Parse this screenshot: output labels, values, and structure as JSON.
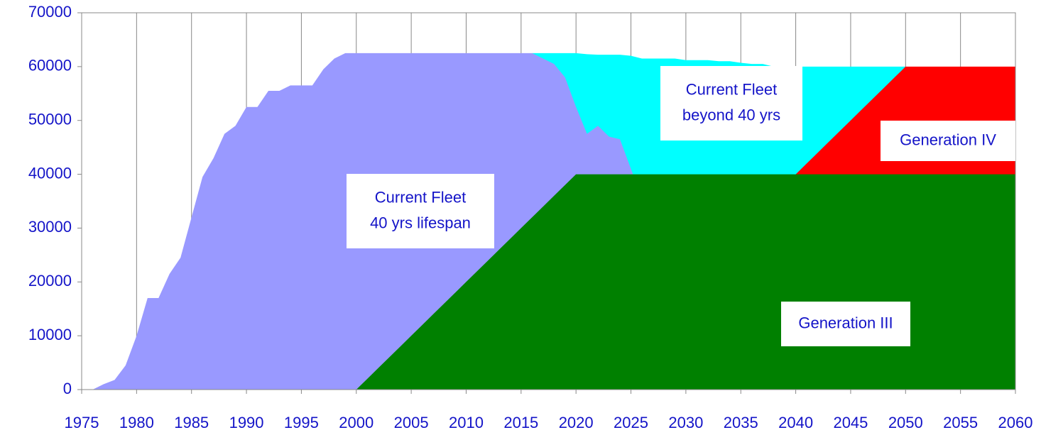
{
  "chart_data": {
    "type": "area",
    "x": [
      1975,
      1976,
      1977,
      1978,
      1979,
      1980,
      1981,
      1982,
      1983,
      1984,
      1985,
      1986,
      1987,
      1988,
      1989,
      1990,
      1991,
      1992,
      1993,
      1994,
      1995,
      1996,
      1997,
      1998,
      1999,
      2000,
      2001,
      2002,
      2003,
      2004,
      2005,
      2006,
      2007,
      2008,
      2009,
      2010,
      2011,
      2012,
      2013,
      2014,
      2015,
      2016,
      2017,
      2018,
      2019,
      2020,
      2021,
      2022,
      2023,
      2024,
      2025,
      2026,
      2027,
      2028,
      2029,
      2030,
      2031,
      2032,
      2033,
      2034,
      2035,
      2036,
      2037,
      2038,
      2039,
      2040,
      2041,
      2042,
      2043,
      2044,
      2045,
      2046,
      2047,
      2048,
      2049,
      2050,
      2051,
      2052,
      2053,
      2054,
      2055,
      2056,
      2057,
      2058,
      2059,
      2060
    ],
    "series": [
      {
        "color": "#00ffff",
        "values": [
          null,
          null,
          null,
          null,
          null,
          null,
          null,
          null,
          null,
          null,
          null,
          null,
          null,
          null,
          null,
          null,
          null,
          null,
          null,
          null,
          null,
          null,
          null,
          null,
          null,
          null,
          null,
          null,
          null,
          null,
          null,
          null,
          null,
          null,
          null,
          null,
          null,
          null,
          null,
          null,
          null,
          62500,
          62500,
          62500,
          62500,
          62500,
          62300,
          62200,
          62200,
          62200,
          62000,
          61500,
          61500,
          61500,
          61500,
          61200,
          61200,
          61200,
          61000,
          61000,
          60700,
          60500,
          60500,
          60000,
          60000,
          60000,
          60000,
          60000,
          60000,
          60000,
          60000,
          60000,
          60000,
          60000,
          60000,
          60000,
          null,
          null,
          null,
          null,
          null,
          null,
          null,
          null,
          null,
          null
        ]
      },
      {
        "color": "#9999ff",
        "values": [
          null,
          0,
          1000,
          1800,
          4500,
          10000,
          17000,
          17000,
          21500,
          24500,
          32000,
          39500,
          43000,
          47500,
          49000,
          52500,
          52500,
          55500,
          55500,
          56500,
          56500,
          56500,
          59500,
          61500,
          62500,
          62500,
          62500,
          62500,
          62500,
          62500,
          62500,
          62500,
          62500,
          62500,
          62500,
          62500,
          62500,
          62500,
          62500,
          62500,
          62500,
          62500,
          61500,
          60500,
          58000,
          52500,
          47500,
          49000,
          47000,
          46500,
          41000,
          35500,
          34000,
          31000,
          31500,
          30000,
          32000,
          31500,
          33500,
          34000,
          36000,
          38000,
          37000,
          37500,
          38500,
          null,
          null,
          null,
          null,
          null,
          null,
          null,
          null,
          null,
          null,
          null,
          null,
          null,
          null,
          null,
          null,
          null,
          null,
          null,
          null,
          null
        ]
      },
      {
        "color": "#ff0000",
        "values": [
          null,
          null,
          null,
          null,
          null,
          null,
          null,
          null,
          null,
          null,
          null,
          null,
          null,
          null,
          null,
          null,
          null,
          null,
          null,
          null,
          null,
          null,
          null,
          null,
          null,
          null,
          null,
          null,
          null,
          null,
          null,
          null,
          null,
          null,
          null,
          null,
          null,
          null,
          null,
          null,
          null,
          null,
          null,
          null,
          null,
          null,
          null,
          null,
          null,
          null,
          null,
          null,
          null,
          null,
          null,
          null,
          null,
          null,
          null,
          null,
          null,
          null,
          null,
          null,
          null,
          40000,
          42000,
          44000,
          46000,
          48000,
          50000,
          52000,
          54000,
          56000,
          58000,
          60000,
          60000,
          60000,
          60000,
          60000,
          60000,
          60000,
          60000,
          60000,
          60000,
          60000
        ]
      },
      {
        "color": "#008000",
        "values": [
          null,
          null,
          null,
          null,
          null,
          null,
          null,
          null,
          null,
          null,
          null,
          null,
          null,
          null,
          null,
          null,
          null,
          null,
          null,
          null,
          null,
          null,
          null,
          null,
          null,
          0,
          2000,
          4000,
          6000,
          8000,
          10000,
          12000,
          14000,
          16000,
          18000,
          20000,
          22000,
          24000,
          26000,
          28000,
          30000,
          32000,
          34000,
          36000,
          38000,
          40000,
          40000,
          40000,
          40000,
          40000,
          40000,
          40000,
          40000,
          40000,
          40000,
          40000,
          40000,
          40000,
          40000,
          40000,
          40000,
          40000,
          40000,
          40000,
          40000,
          40000,
          40000,
          40000,
          40000,
          40000,
          40000,
          40000,
          40000,
          40000,
          40000,
          40000,
          40000,
          40000,
          40000,
          40000,
          40000,
          40000,
          40000,
          40000,
          40000,
          40000
        ]
      }
    ],
    "xlim": [
      1975,
      2060
    ],
    "ylim": [
      0,
      70000
    ],
    "xticks": [
      1975,
      1980,
      1985,
      1990,
      1995,
      2000,
      2005,
      2010,
      2015,
      2020,
      2025,
      2030,
      2035,
      2040,
      2045,
      2050,
      2055,
      2060
    ],
    "yticks": [
      0,
      10000,
      20000,
      30000,
      40000,
      50000,
      60000,
      70000
    ],
    "grid": true,
    "annotations": [
      {
        "lines": [
          "Current Fleet",
          "40 yrs lifespan"
        ]
      },
      {
        "lines": [
          "Current Fleet",
          "beyond 40 yrs"
        ]
      },
      {
        "lines": [
          "Generation IV"
        ]
      },
      {
        "lines": [
          "Generation III"
        ]
      }
    ]
  }
}
